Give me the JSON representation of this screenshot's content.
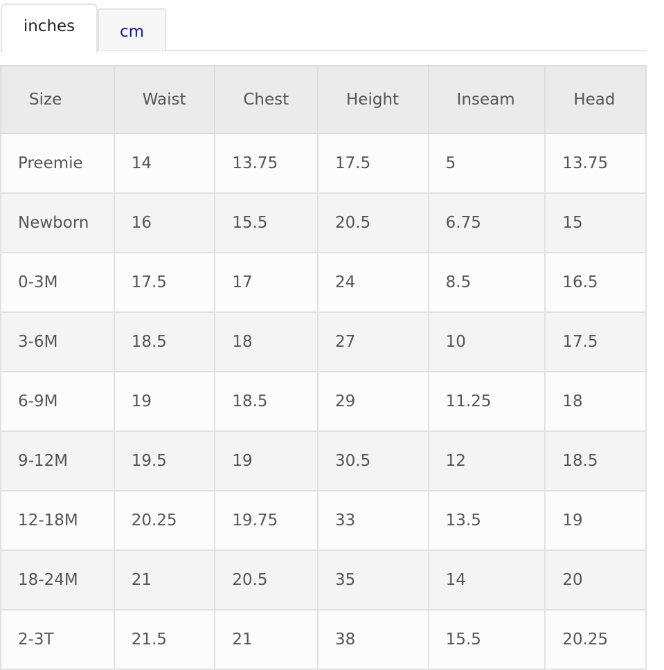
{
  "tabs": [
    {
      "label": "inches",
      "active": true
    },
    {
      "label": "cm",
      "active": false
    }
  ],
  "table": {
    "headers": [
      "Size",
      "Waist",
      "Chest",
      "Height",
      "Inseam",
      "Head"
    ],
    "rows": [
      [
        "Preemie",
        "14",
        "13.75",
        "17.5",
        "5",
        "13.75"
      ],
      [
        "Newborn",
        "16",
        "15.5",
        "20.5",
        "6.75",
        "15"
      ],
      [
        "0-3M",
        "17.5",
        "17",
        "24",
        "8.5",
        "16.5"
      ],
      [
        "3-6M",
        "18.5",
        "18",
        "27",
        "10",
        "17.5"
      ],
      [
        "6-9M",
        "19",
        "18.5",
        "29",
        "11.25",
        "18"
      ],
      [
        "9-12M",
        "19.5",
        "19",
        "30.5",
        "12",
        "18.5"
      ],
      [
        "12-18M",
        "20.25",
        "19.75",
        "33",
        "13.5",
        "19"
      ],
      [
        "18-24M",
        "21",
        "20.5",
        "35",
        "14",
        "20"
      ],
      [
        "2-3T",
        "21.5",
        "21",
        "38",
        "15.5",
        "20.25"
      ]
    ]
  }
}
